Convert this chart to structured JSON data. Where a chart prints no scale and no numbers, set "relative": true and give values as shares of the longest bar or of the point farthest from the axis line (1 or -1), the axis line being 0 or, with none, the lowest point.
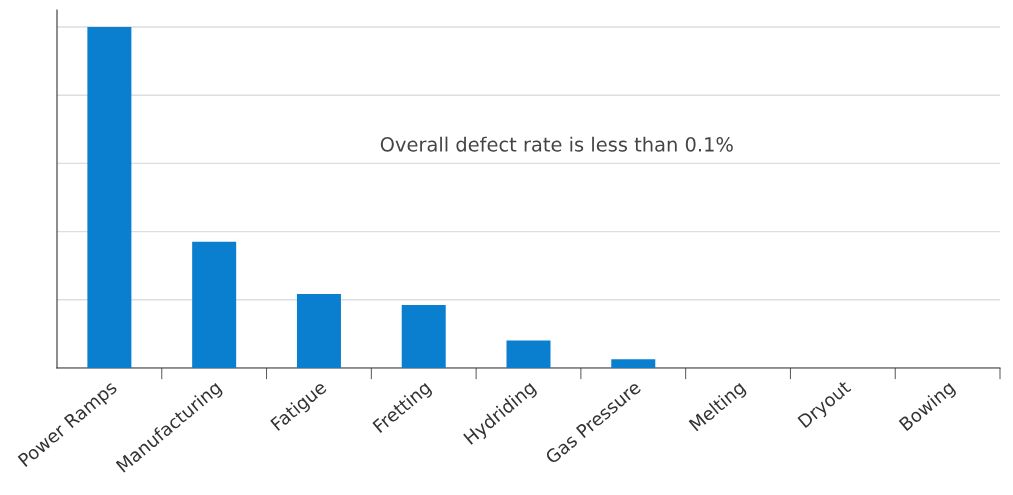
{
  "chart_data": {
    "type": "bar",
    "relative": true,
    "categories": [
      "Power Ramps",
      "Manufacturing",
      "Fatigue",
      "Fretting",
      "Hydriding",
      "Gas Pressure",
      "Melting",
      "Dryout",
      "Bowing"
    ],
    "values": [
      1,
      0.37,
      0.217,
      0.185,
      0.081,
      0.026,
      0,
      0,
      0
    ],
    "color": "#0a7fd0",
    "grid": "y",
    "annotations": [
      "Overall defect rate is less than 0.1%"
    ]
  }
}
